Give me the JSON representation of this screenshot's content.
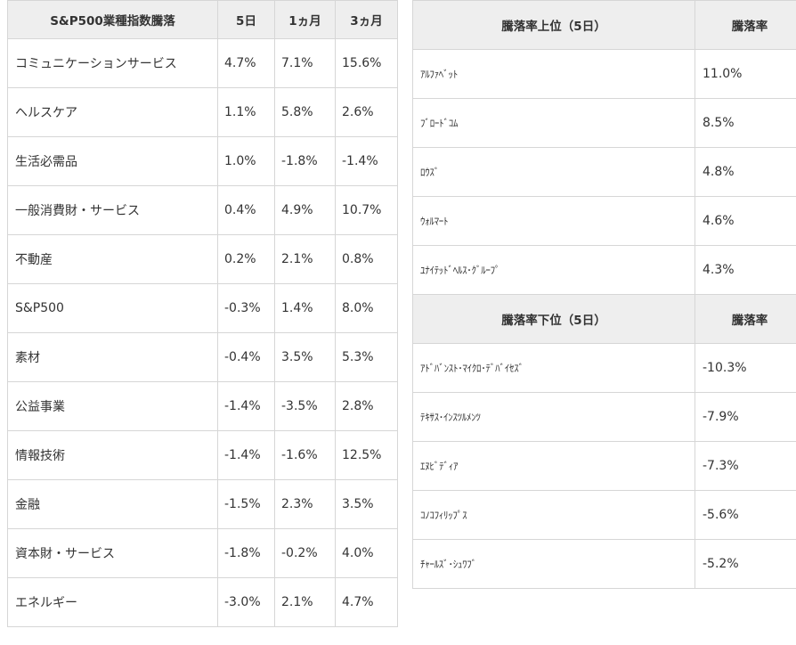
{
  "sector_table": {
    "headers": [
      "S&P500業種指数騰落",
      "5日",
      "1ヵ月",
      "3ヵ月"
    ],
    "rows": [
      [
        "コミュニケーションサービス",
        "4.7%",
        "7.1%",
        "15.6%"
      ],
      [
        "ヘルスケア",
        "1.1%",
        "5.8%",
        "2.6%"
      ],
      [
        "生活必需品",
        "1.0%",
        "-1.8%",
        "-1.4%"
      ],
      [
        "一般消費財・サービス",
        "0.4%",
        "4.9%",
        "10.7%"
      ],
      [
        "不動産",
        "0.2%",
        "2.1%",
        "0.8%"
      ],
      [
        "S&P500",
        "-0.3%",
        "1.4%",
        "8.0%"
      ],
      [
        "素材",
        "-0.4%",
        "3.5%",
        "5.3%"
      ],
      [
        "公益事業",
        "-1.4%",
        "-3.5%",
        "2.8%"
      ],
      [
        "情報技術",
        "-1.4%",
        "-1.6%",
        "12.5%"
      ],
      [
        "金融",
        "-1.5%",
        "2.3%",
        "3.5%"
      ],
      [
        "資本財・サービス",
        "-1.8%",
        "-0.2%",
        "4.0%"
      ],
      [
        "エネルギー",
        "-3.0%",
        "2.1%",
        "4.7%"
      ]
    ]
  },
  "top_table": {
    "headers": [
      "騰落率上位（5日）",
      "騰落率"
    ],
    "rows": [
      [
        "ｱﾙﾌｧﾍﾞｯﾄ",
        "11.0%"
      ],
      [
        "ﾌﾞﾛｰﾄﾞｺﾑ",
        "8.5%"
      ],
      [
        "ﾛｳｽﾞ",
        "4.8%"
      ],
      [
        "ｳｫﾙﾏｰﾄ",
        "4.6%"
      ],
      [
        "ﾕﾅｲﾃｯﾄﾞﾍﾙｽ･ｸﾞﾙｰﾌﾟ",
        "4.3%"
      ]
    ]
  },
  "bottom_table": {
    "headers": [
      "騰落率下位（5日）",
      "騰落率"
    ],
    "rows": [
      [
        "ｱﾄﾞﾊﾞﾝｽﾄ･ﾏｲｸﾛ･ﾃﾞﾊﾞｲｾｽﾞ",
        "-10.3%"
      ],
      [
        "ﾃｷｻｽ･ｲﾝｽﾂﾙﾒﾝﾂ",
        "-7.9%"
      ],
      [
        "ｴﾇﾋﾞﾃﾞｨｱ",
        "-7.3%"
      ],
      [
        "ｺﾉｺﾌｨﾘｯﾌﾟｽ",
        "-5.6%"
      ],
      [
        "ﾁｬｰﾙｽﾞ･ｼｭﾜﾌﾞ",
        "-5.2%"
      ]
    ]
  }
}
